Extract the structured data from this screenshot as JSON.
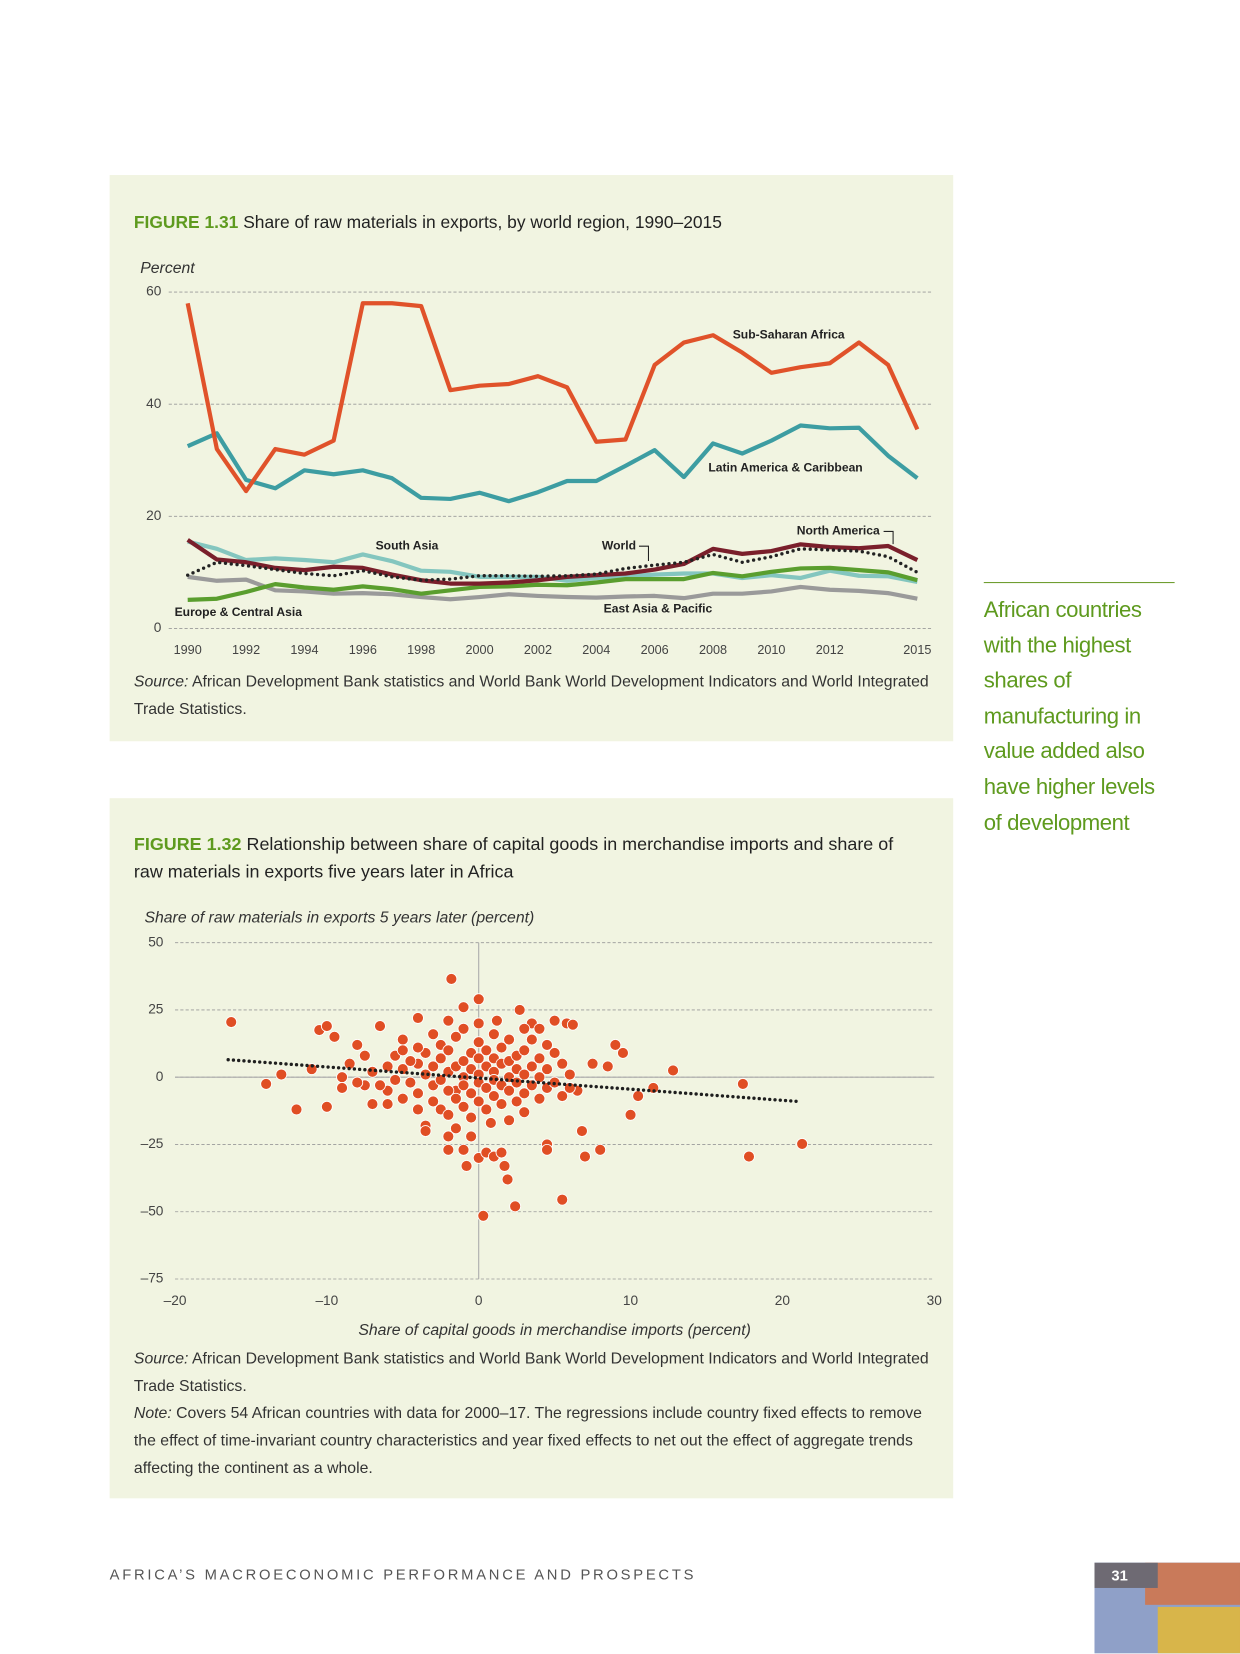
{
  "chart_data": [
    {
      "type": "line",
      "label": "FIGURE 1.31",
      "title": "Share of raw materials in exports, by world region, 1990–2015",
      "ylabel": "Percent",
      "x": [
        1990,
        1991,
        1992,
        1993,
        1994,
        1995,
        1996,
        1997,
        1998,
        1999,
        2000,
        2001,
        2002,
        2003,
        2004,
        2005,
        2006,
        2007,
        2008,
        2009,
        2010,
        2011,
        2012,
        2013,
        2014,
        2015
      ],
      "xlim": [
        1990,
        2015
      ],
      "xticks": [
        1990,
        1992,
        1994,
        1996,
        1998,
        2000,
        2002,
        2004,
        2006,
        2008,
        2010,
        2012,
        2015
      ],
      "ylim": [
        0,
        60
      ],
      "yticks": [
        0,
        20,
        40,
        60
      ],
      "grid": true,
      "series": [
        {
          "name": "East Asia & Pacific",
          "color": "#9a9a9a",
          "values": [
            9.2,
            8.5,
            8.7,
            6.8,
            6.6,
            6.2,
            6.3,
            6.1,
            5.6,
            5.2,
            5.6,
            6.1,
            5.8,
            5.6,
            5.5,
            5.7,
            5.8,
            5.4,
            6.2,
            6.2,
            6.6,
            7.4,
            6.9,
            6.7,
            6.3,
            5.3
          ]
        },
        {
          "name": "South Asia",
          "color": "#84c6bf",
          "values": [
            15.5,
            14.2,
            12.2,
            12.5,
            12.2,
            11.8,
            13.2,
            12,
            10.3,
            10.1,
            9.2,
            9.2,
            9.2,
            8.5,
            9,
            9.3,
            9.6,
            9.8,
            9.8,
            9,
            9.5,
            9,
            10.3,
            9.4,
            9.3,
            8.3
          ]
        },
        {
          "name": "Europe & Central Asia",
          "color": "#5a9e2e",
          "values": [
            5.1,
            5.3,
            6.5,
            7.9,
            7.3,
            6.9,
            7.5,
            7,
            6.2,
            6.8,
            7.4,
            7.5,
            7.8,
            7.7,
            8.2,
            8.8,
            8.8,
            8.8,
            9.9,
            9.3,
            10.1,
            10.7,
            10.8,
            10.4,
            10,
            8.6
          ]
        },
        {
          "name": "North America",
          "color": "#7a1f2b",
          "values": [
            15.8,
            12.3,
            11.8,
            10.8,
            10.4,
            11,
            10.8,
            9.6,
            8.6,
            8,
            8,
            8.2,
            8.6,
            9.2,
            9.5,
            9.8,
            10.5,
            11.5,
            14.2,
            13.3,
            13.8,
            15,
            14.5,
            14.3,
            14.7,
            12.2
          ]
        },
        {
          "name": "World",
          "color": "#222222",
          "dash": "dotted",
          "values": [
            9.5,
            11.8,
            11.2,
            10.5,
            9.8,
            9.4,
            10.3,
            9.2,
            8.6,
            8.8,
            9.4,
            9.4,
            9.3,
            9.4,
            9.7,
            10.7,
            11.3,
            11.8,
            13.2,
            11.8,
            12.8,
            14.2,
            14,
            13.8,
            12.8,
            10
          ]
        },
        {
          "name": "Latin America & Caribbean",
          "color": "#3d9da2",
          "values": [
            32.5,
            34.8,
            26.5,
            25,
            28.2,
            27.5,
            28.2,
            26.8,
            23.3,
            23.1,
            24.2,
            22.7,
            24.3,
            26.3,
            26.3,
            29,
            31.8,
            27,
            33,
            31.2,
            33.5,
            36.2,
            35.7,
            35.8,
            30.8,
            26.8
          ]
        },
        {
          "name": "Sub-Saharan Africa",
          "color": "#e0522a",
          "values": [
            58,
            32,
            24.5,
            32,
            31,
            33.5,
            58,
            58,
            57.5,
            42.5,
            43.3,
            43.6,
            45,
            43,
            33.3,
            33.7,
            47,
            51,
            52.3,
            49.2,
            45.6,
            46.6,
            47.3,
            51,
            47,
            35.5
          ]
        }
      ],
      "source_label": "Source:",
      "source": "African Development Bank statistics and World Bank World Development Indicators and World Integrated Trade Statistics."
    },
    {
      "type": "scatter",
      "label": "FIGURE 1.32",
      "title": "Relationship between share of capital goods in merchandise imports and share of raw materials in exports five years later in Africa",
      "ylabel": "Share of raw materials in exports 5 years later (percent)",
      "xlabel": "Share of capital goods in merchandise imports (percent)",
      "xlim": [
        -20,
        30
      ],
      "xticks": [
        {
          "value": -20,
          "label": "–20"
        },
        {
          "value": -10,
          "label": "–10"
        },
        0,
        10,
        20,
        30
      ],
      "ylim": [
        -75,
        50
      ],
      "yticks": [
        {
          "value": -75,
          "label": "–75"
        },
        {
          "value": -50,
          "label": "–50"
        },
        {
          "value": -25,
          "label": "–25"
        },
        0,
        25,
        50
      ],
      "grid": true,
      "series": [
        {
          "color": "#e04e24",
          "x": [
            -16.3,
            -14,
            -13,
            -12,
            -11,
            -10.5,
            -10,
            -10,
            -9.5,
            -9,
            -8,
            -7.5,
            -7,
            -6.5,
            -6,
            -5.5,
            -5,
            -4,
            -4,
            -3.5,
            -3.5,
            -2.5,
            -2,
            -2,
            -1.8,
            -1.5,
            -1,
            -1,
            -0.8,
            -0.5,
            0,
            0,
            0.3,
            0.5,
            1,
            1.5,
            1.7,
            1.9,
            2.4,
            2.7,
            3.5,
            4,
            4.5,
            4.5,
            5,
            5.5,
            5.8,
            6.2,
            6.5,
            6.8,
            7,
            7.5,
            8,
            8.5,
            9,
            9.5,
            10,
            10.5,
            11.5,
            12.8,
            17.4,
            17.8,
            21.3,
            -5,
            -4.5,
            -4,
            -4,
            -3.5,
            -3.5,
            -3,
            -3,
            -3,
            -2.5,
            -2.5,
            -2.5,
            -2,
            -2,
            -2,
            -2,
            -1.5,
            -1.5,
            -1.5,
            -1,
            -1,
            -1,
            -1,
            -1,
            -0.5,
            -0.5,
            -0.5,
            -0.5,
            0,
            0,
            0,
            0,
            0,
            0,
            0.5,
            0.5,
            0.5,
            0.5,
            1,
            1,
            1,
            1,
            1,
            1.5,
            1.5,
            1.5,
            1.5,
            2,
            2,
            2,
            2,
            2,
            2.5,
            2.5,
            2.5,
            2.5,
            3,
            3,
            3,
            3,
            3.5,
            3.5,
            3.5,
            4,
            4,
            4,
            4.5,
            4.5,
            5,
            5,
            5.5,
            5.5,
            6,
            6,
            -6,
            -6,
            -5.5,
            -5,
            -5,
            -4.5,
            -7,
            -7.5,
            -8,
            -6.5,
            -3,
            -1.5,
            0.8,
            3,
            -2,
            1.2,
            -4,
            4.5,
            -8.5,
            -9
          ],
          "values": [
            20.5,
            -2.5,
            1,
            -12,
            3,
            17.5,
            19,
            -11,
            15,
            0,
            12,
            -3,
            -10,
            19,
            -10,
            8,
            14,
            -12,
            22,
            -18,
            -20,
            -12,
            -22,
            -27,
            36.5,
            -5,
            26,
            -27,
            -33,
            -22,
            -30,
            29,
            -51.5,
            -28,
            -29.5,
            -28,
            -33,
            -38,
            -48,
            25,
            20,
            18,
            -25,
            -27,
            21,
            -45.5,
            20,
            19.5,
            -5,
            -20,
            -29.5,
            5,
            -27,
            4,
            12,
            9,
            -14,
            -7,
            -4,
            2.5,
            -2.5,
            -29.5,
            -24.8,
            3,
            -2,
            5,
            -6,
            1,
            9,
            -3,
            4,
            -9,
            7,
            -1,
            12,
            2,
            -5,
            10,
            -14,
            4,
            -8,
            15,
            0,
            6,
            -3,
            -11,
            18,
            3,
            -6,
            9,
            -15,
            1,
            -2,
            7,
            -9,
            13,
            20,
            4,
            -4,
            10,
            -12,
            2,
            -1,
            7,
            -7,
            16,
            5,
            -3,
            -10,
            11,
            0,
            6,
            -5,
            -16,
            14,
            3,
            -2,
            8,
            -9,
            1,
            -6,
            10,
            -13,
            4,
            -3,
            14,
            0,
            7,
            -8,
            3,
            -4,
            9,
            -2,
            5,
            -7,
            1,
            -4,
            4,
            -5,
            -1,
            10,
            -8,
            6,
            2,
            8,
            -2,
            -3,
            16,
            -19,
            -17,
            18,
            21,
            21,
            11,
            12,
            5,
            -4
          ]
        }
      ],
      "trend_line": {
        "color": "#1e1e1e",
        "x": [
          -16.5,
          21
        ],
        "values": [
          6.5,
          -9
        ]
      },
      "source_label": "Source:",
      "source": "African Development Bank statistics and World Bank World Development Indicators and World Integrated Trade Statistics.",
      "note_label": "Note:",
      "note": "Covers 54 African countries with data for 2000–17. The regressions include country fixed effects to remove the effect of time-invariant country characteristics and year fixed effects to net out the effect of aggregate trends affecting the continent as a whole."
    }
  ],
  "sidebar": {
    "lines": [
      "African countries",
      "with the highest",
      "shares of",
      "manufacturing in",
      "value added also",
      "have higher levels",
      "of development"
    ]
  },
  "footer": {
    "running_title": "AFRICA’S MACROECONOMIC PERFORMANCE AND PROSPECTS",
    "page_number": "31"
  }
}
